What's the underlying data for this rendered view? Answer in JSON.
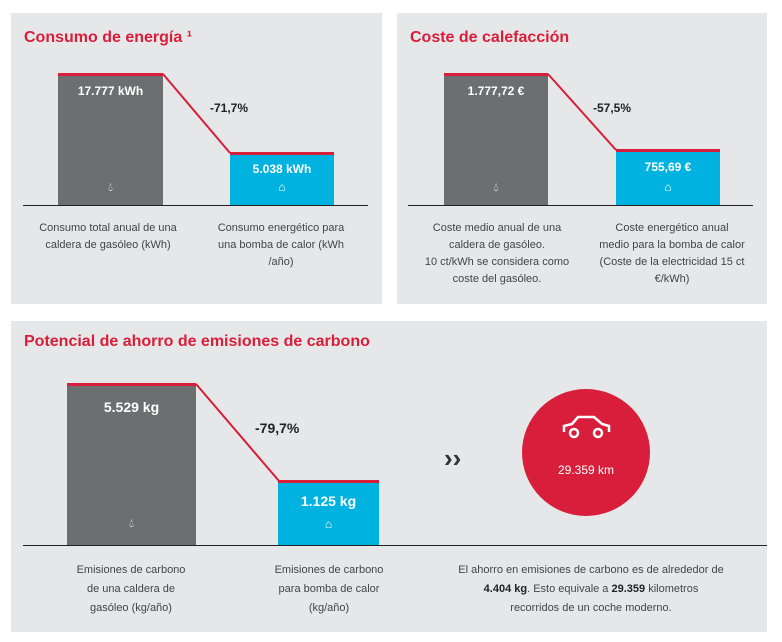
{
  "colors": {
    "accent": "#d81e3a",
    "oil": "#6d6e70",
    "heat_pump": "#00b2e0",
    "panel": "#e6e7e9"
  },
  "chart_data": [
    {
      "type": "bar",
      "title": "Consumo de energía ¹",
      "categories": [
        "Consumo total anual de una caldera de gasóleo (kWh)",
        "Consumo energético para una bomba de calor (kWh /año)"
      ],
      "values": [
        17777,
        5038
      ],
      "value_labels": [
        "17.777 kWh",
        "5.038 kWh"
      ],
      "change": "-71,7%",
      "icons": [
        "drop-icon",
        "heat-pump-icon"
      ]
    },
    {
      "type": "bar",
      "title": "Coste de calefacción",
      "categories": [
        "Coste medio anual de una caldera de gasóleo. 10 ct/kWh se considera como coste del gasóleo.",
        "Coste energético anual medio para la bomba de calor (Coste de la electricidad 15 ct €/kWh)"
      ],
      "values": [
        1777.72,
        755.69
      ],
      "value_labels": [
        "1.777,72 €",
        "755,69 €"
      ],
      "change": "-57,5%",
      "icons": [
        "drop-icon",
        "heat-pump-icon"
      ]
    },
    {
      "type": "bar",
      "title": "Potencial de ahorro de emisiones de carbono",
      "categories": [
        "Emisiones de carbono de una caldera de gasóleo (kg/año)",
        "Emisiones de carbono para bomba de calor (kg/año)"
      ],
      "values": [
        5529,
        1125
      ],
      "value_labels": [
        "5.529 kg",
        "1.125 kg"
      ],
      "change": "-79,7%",
      "icons": [
        "drop-icon",
        "heat-pump-icon"
      ]
    }
  ],
  "p1": {
    "title": "Consumo de energía ¹",
    "v1": "17.777 kWh",
    "v2": "5.038 kWh",
    "pct": "-71,7%",
    "l1": [
      "Consumo total anual de una",
      "caldera de gasóleo (kWh)"
    ],
    "l2": [
      "Consumo energético para",
      "una bomba de calor (kWh",
      "/año)"
    ]
  },
  "p2": {
    "title": "Coste de calefacción",
    "v1": "1.777,72 €",
    "v2": "755,69 €",
    "pct": "-57,5%",
    "l1": [
      "Coste medio anual de una",
      "caldera de gasóleo.",
      "10 ct/kWh se considera como",
      "coste del gasóleo."
    ],
    "l2": [
      "Coste energético anual",
      "medio para la bomba de calor",
      "(Coste de la electricidad 15 ct",
      "€/kWh)"
    ]
  },
  "p3": {
    "title": "Potencial de ahorro de emisiones de carbono",
    "v1": "5.529 kg",
    "v2": "1.125 kg",
    "pct": "-79,7%",
    "l1": [
      "Emisiones de carbono",
      "de una caldera de",
      "gasóleo (kg/año)"
    ],
    "l2": [
      "Emisiones de carbono",
      "para bomba de calor",
      "(kg/año)"
    ],
    "km": "29.359 km",
    "summary": {
      "a": "El ahorro en emisiones de carbono es de alrededor de",
      "b": "4.404 kg",
      "c": ". Esto equivale a ",
      "d": "29.359",
      "e": " kilometros",
      "f": "recorridos de un coche moderno."
    }
  }
}
